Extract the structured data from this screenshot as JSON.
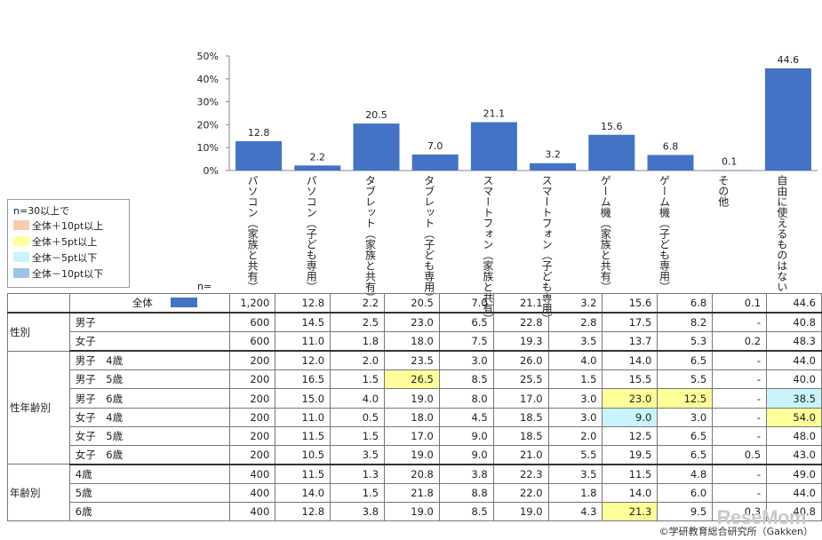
{
  "chart_data": {
    "type": "bar",
    "categories": [
      "パソコン（家族と共有）",
      "パソコン（子ども専用）",
      "タブレット（家族と共有）",
      "タブレット（子ども専用）",
      "スマートフォン（家族と共有）",
      "スマートフォン（子ども専用）",
      "ゲーム機（家族と共有）",
      "ゲーム機（子ども専用）",
      "その他",
      "自由に使えるものはない"
    ],
    "values": [
      12.8,
      2.2,
      20.5,
      7.0,
      21.1,
      3.2,
      15.6,
      6.8,
      0.1,
      44.6
    ],
    "value_labels": [
      "12.8",
      "2.2",
      "20.5",
      "7.0",
      "21.1",
      "3.2",
      "15.6",
      "6.8",
      "0.1",
      "44.6"
    ],
    "yticks": [
      "0%",
      "10%",
      "20%",
      "30%",
      "40%",
      "50%"
    ],
    "ylim": [
      0,
      50
    ],
    "bar_color": "#4472c4"
  },
  "legend": {
    "title": "n=30以上で",
    "items": [
      {
        "label": "全体＋10pt以上",
        "color": "#f8cbad"
      },
      {
        "label": "全体＋5pt以上",
        "color": "#ffff99"
      },
      {
        "label": "全体－5pt以下",
        "color": "#c9f4fb"
      },
      {
        "label": "全体－10pt以下",
        "color": "#9dc3e6"
      }
    ]
  },
  "n_label": "n=",
  "table": {
    "rows": [
      {
        "group": "",
        "seg": "全体",
        "n": "1,200",
        "vals": [
          "12.8",
          "2.2",
          "20.5",
          "7.0",
          "21.1",
          "3.2",
          "15.6",
          "6.8",
          "0.1",
          "44.6"
        ],
        "hl": [
          null,
          null,
          null,
          null,
          null,
          null,
          null,
          null,
          null,
          null
        ]
      },
      {
        "group": "性別",
        "seg": "男子",
        "n": "600",
        "vals": [
          "14.5",
          "2.5",
          "23.0",
          "6.5",
          "22.8",
          "2.8",
          "17.5",
          "8.2",
          "-",
          "40.8"
        ],
        "hl": [
          null,
          null,
          null,
          null,
          null,
          null,
          null,
          null,
          null,
          null
        ]
      },
      {
        "group": "",
        "seg": "女子",
        "n": "600",
        "vals": [
          "11.0",
          "1.8",
          "18.0",
          "7.5",
          "19.3",
          "3.5",
          "13.7",
          "5.3",
          "0.2",
          "48.3"
        ],
        "hl": [
          null,
          null,
          null,
          null,
          null,
          null,
          null,
          null,
          null,
          null
        ]
      },
      {
        "group": "性年齢別",
        "seg": "男子　4歳",
        "n": "200",
        "vals": [
          "12.0",
          "2.0",
          "23.5",
          "3.0",
          "26.0",
          "4.0",
          "14.0",
          "6.5",
          "-",
          "44.0"
        ],
        "hl": [
          null,
          null,
          null,
          null,
          null,
          null,
          null,
          null,
          null,
          null
        ]
      },
      {
        "group": "",
        "seg": "男子　5歳",
        "n": "200",
        "vals": [
          "16.5",
          "1.5",
          "26.5",
          "8.5",
          "25.5",
          "1.5",
          "15.5",
          "5.5",
          "-",
          "40.0"
        ],
        "hl": [
          null,
          null,
          "y",
          null,
          null,
          null,
          null,
          null,
          null,
          null
        ]
      },
      {
        "group": "",
        "seg": "男子　6歳",
        "n": "200",
        "vals": [
          "15.0",
          "4.0",
          "19.0",
          "8.0",
          "17.0",
          "3.0",
          "23.0",
          "12.5",
          "-",
          "38.5"
        ],
        "hl": [
          null,
          null,
          null,
          null,
          null,
          null,
          "y",
          "y",
          null,
          "c"
        ]
      },
      {
        "group": "",
        "seg": "女子　4歳",
        "n": "200",
        "vals": [
          "11.0",
          "0.5",
          "18.0",
          "4.5",
          "18.5",
          "3.0",
          "9.0",
          "3.0",
          "-",
          "54.0"
        ],
        "hl": [
          null,
          null,
          null,
          null,
          null,
          null,
          "c",
          null,
          null,
          "y"
        ]
      },
      {
        "group": "",
        "seg": "女子　5歳",
        "n": "200",
        "vals": [
          "11.5",
          "1.5",
          "17.0",
          "9.0",
          "18.5",
          "2.0",
          "12.5",
          "6.5",
          "-",
          "48.0"
        ],
        "hl": [
          null,
          null,
          null,
          null,
          null,
          null,
          null,
          null,
          null,
          null
        ]
      },
      {
        "group": "",
        "seg": "女子　6歳",
        "n": "200",
        "vals": [
          "10.5",
          "3.5",
          "19.0",
          "9.0",
          "21.0",
          "5.5",
          "19.5",
          "6.5",
          "0.5",
          "43.0"
        ],
        "hl": [
          null,
          null,
          null,
          null,
          null,
          null,
          null,
          null,
          null,
          null
        ]
      },
      {
        "group": "年齢別",
        "seg": "4歳",
        "n": "400",
        "vals": [
          "11.5",
          "1.3",
          "20.8",
          "3.8",
          "22.3",
          "3.5",
          "11.5",
          "4.8",
          "-",
          "49.0"
        ],
        "hl": [
          null,
          null,
          null,
          null,
          null,
          null,
          null,
          null,
          null,
          null
        ]
      },
      {
        "group": "",
        "seg": "5歳",
        "n": "400",
        "vals": [
          "14.0",
          "1.5",
          "21.8",
          "8.8",
          "22.0",
          "1.8",
          "14.0",
          "6.0",
          "-",
          "44.0"
        ],
        "hl": [
          null,
          null,
          null,
          null,
          null,
          null,
          null,
          null,
          null,
          null
        ]
      },
      {
        "group": "",
        "seg": "6歳",
        "n": "400",
        "vals": [
          "12.8",
          "3.8",
          "19.0",
          "8.5",
          "19.0",
          "4.3",
          "21.3",
          "9.5",
          "0.3",
          "40.8"
        ],
        "hl": [
          null,
          null,
          null,
          null,
          null,
          null,
          "y",
          null,
          null,
          null
        ]
      }
    ]
  },
  "credit": "©学研教育総合研究所（Gakken）",
  "watermark": "ReseMom"
}
